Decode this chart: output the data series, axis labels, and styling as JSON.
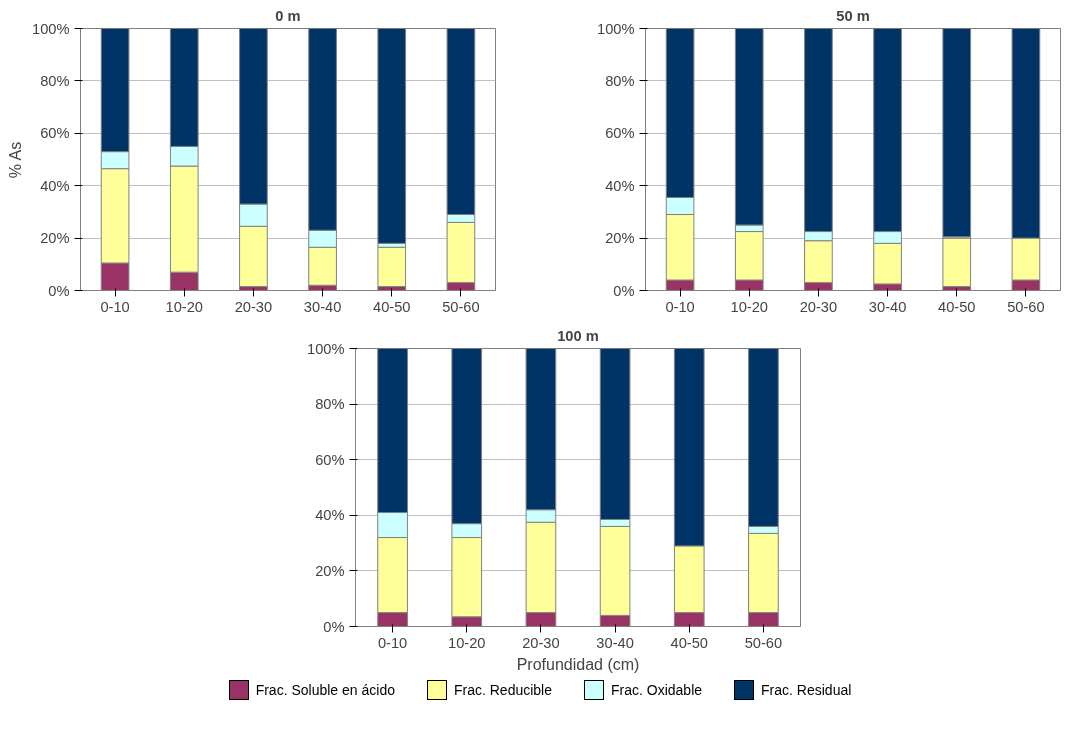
{
  "chart_data": [
    {
      "type": "bar",
      "stacked": true,
      "title": "0 m",
      "ylabel": "% As",
      "categories": [
        "0-10",
        "10-20",
        "20-30",
        "30-40",
        "40-50",
        "50-60"
      ],
      "ylim": [
        0,
        100
      ],
      "yticks": [
        {
          "value": 0,
          "label": "0%"
        },
        {
          "value": 20,
          "label": "20%"
        },
        {
          "value": 40,
          "label": "40%"
        },
        {
          "value": 60,
          "label": "60%"
        },
        {
          "value": 80,
          "label": "80%"
        },
        {
          "value": 100,
          "label": "100%"
        }
      ],
      "grid": "y",
      "series": [
        {
          "color": "#993366",
          "values": [
            10.5,
            7,
            1.5,
            2,
            1.5,
            3
          ]
        },
        {
          "color": "#ffff99",
          "values": [
            36,
            40.5,
            23,
            14.5,
            15,
            23
          ]
        },
        {
          "color": "#ccffff",
          "values": [
            6.5,
            7.5,
            8.5,
            6.5,
            1.5,
            3
          ]
        },
        {
          "color": "#003366",
          "values": [
            47,
            45,
            67,
            77,
            82,
            71
          ]
        }
      ]
    },
    {
      "type": "bar",
      "stacked": true,
      "title": "50 m",
      "categories": [
        "0-10",
        "10-20",
        "20-30",
        "30-40",
        "40-50",
        "50-60"
      ],
      "ylim": [
        0,
        100
      ],
      "yticks": [
        {
          "value": 0,
          "label": "0%"
        },
        {
          "value": 20,
          "label": "20%"
        },
        {
          "value": 40,
          "label": "40%"
        },
        {
          "value": 60,
          "label": "60%"
        },
        {
          "value": 80,
          "label": "80%"
        },
        {
          "value": 100,
          "label": "100%"
        }
      ],
      "grid": "y",
      "series": [
        {
          "color": "#993366",
          "values": [
            4,
            4,
            3,
            2.5,
            1.5,
            4
          ]
        },
        {
          "color": "#ffff99",
          "values": [
            25,
            18.5,
            16,
            15.5,
            18.5,
            16
          ]
        },
        {
          "color": "#ccffff",
          "values": [
            6.5,
            2.5,
            3.5,
            4.5,
            0.5,
            null
          ]
        },
        {
          "color": "#003366",
          "values": [
            64.5,
            75,
            77.5,
            77.5,
            79.5,
            80
          ]
        }
      ]
    },
    {
      "type": "bar",
      "stacked": true,
      "title": "100 m",
      "xlabel": "Profundidad (cm)",
      "legend": "bottom",
      "categories": [
        "0-10",
        "10-20",
        "20-30",
        "30-40",
        "40-50",
        "50-60"
      ],
      "ylim": [
        0,
        100
      ],
      "yticks": [
        {
          "value": 0,
          "label": "0%"
        },
        {
          "value": 20,
          "label": "20%"
        },
        {
          "value": 40,
          "label": "40%"
        },
        {
          "value": 60,
          "label": "60%"
        },
        {
          "value": 80,
          "label": "80%"
        },
        {
          "value": 100,
          "label": "100%"
        }
      ],
      "grid": "y",
      "series": [
        {
          "name": "Frac. Soluble en ácido",
          "color": "#993366",
          "values": [
            5,
            3.5,
            5,
            4,
            5,
            5
          ]
        },
        {
          "name": "Frac. Reducible",
          "color": "#ffff99",
          "values": [
            27,
            28.5,
            32.5,
            32,
            24,
            28.5
          ]
        },
        {
          "name": "Frac. Oxidable",
          "color": "#ccffff",
          "values": [
            9,
            5,
            4.5,
            2.5,
            null,
            2.5
          ]
        },
        {
          "name": "Frac. Residual",
          "color": "#003366",
          "values": [
            59,
            63,
            58,
            61.5,
            71,
            64
          ]
        }
      ]
    }
  ]
}
